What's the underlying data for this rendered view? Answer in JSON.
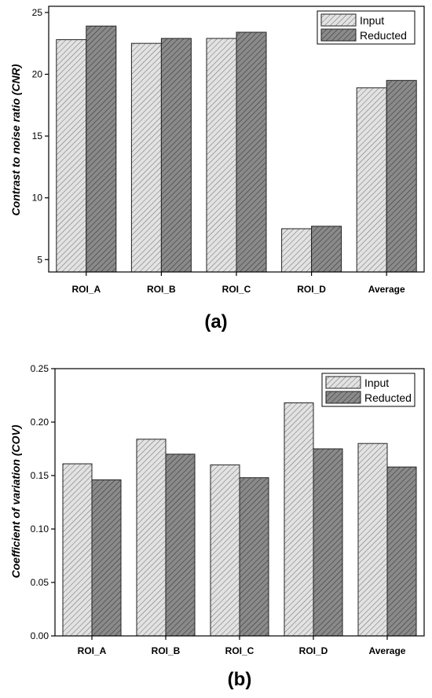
{
  "chart_data": [
    {
      "type": "bar",
      "panel_label": "(a)",
      "ylabel": "Contrast to noise ratio (CNR)",
      "xlabel": "",
      "categories": [
        "ROI_A",
        "ROI_B",
        "ROI_C",
        "ROI_D",
        "Average"
      ],
      "series": [
        {
          "name": "Input",
          "values": [
            22.8,
            22.5,
            22.9,
            7.5,
            18.9
          ]
        },
        {
          "name": "Reducted",
          "values": [
            23.9,
            22.9,
            23.4,
            7.7,
            19.5
          ]
        }
      ],
      "ylim": [
        4,
        25.5
      ],
      "yticks": [
        "5",
        "10",
        "15",
        "20",
        "25"
      ],
      "grid": false,
      "legend": "top-right",
      "colors": {
        "Input": "#d2d2d2",
        "Reducted": "#7a7a7a"
      }
    },
    {
      "type": "bar",
      "panel_label": "(b)",
      "ylabel": "Coefficient of variation (COV)",
      "xlabel": "",
      "categories": [
        "ROI_A",
        "ROI_B",
        "ROI_C",
        "ROI_D",
        "Average"
      ],
      "series": [
        {
          "name": "Input",
          "values": [
            0.161,
            0.184,
            0.16,
            0.218,
            0.18
          ]
        },
        {
          "name": "Reducted",
          "values": [
            0.146,
            0.17,
            0.148,
            0.175,
            0.158
          ]
        }
      ],
      "ylim": [
        0,
        0.25
      ],
      "yticks": [
        "0.00",
        "0.05",
        "0.10",
        "0.15",
        "0.20",
        "0.25"
      ],
      "grid": false,
      "legend": "top-right",
      "colors": {
        "Input": "#d2d2d2",
        "Reducted": "#7a7a7a"
      }
    }
  ]
}
